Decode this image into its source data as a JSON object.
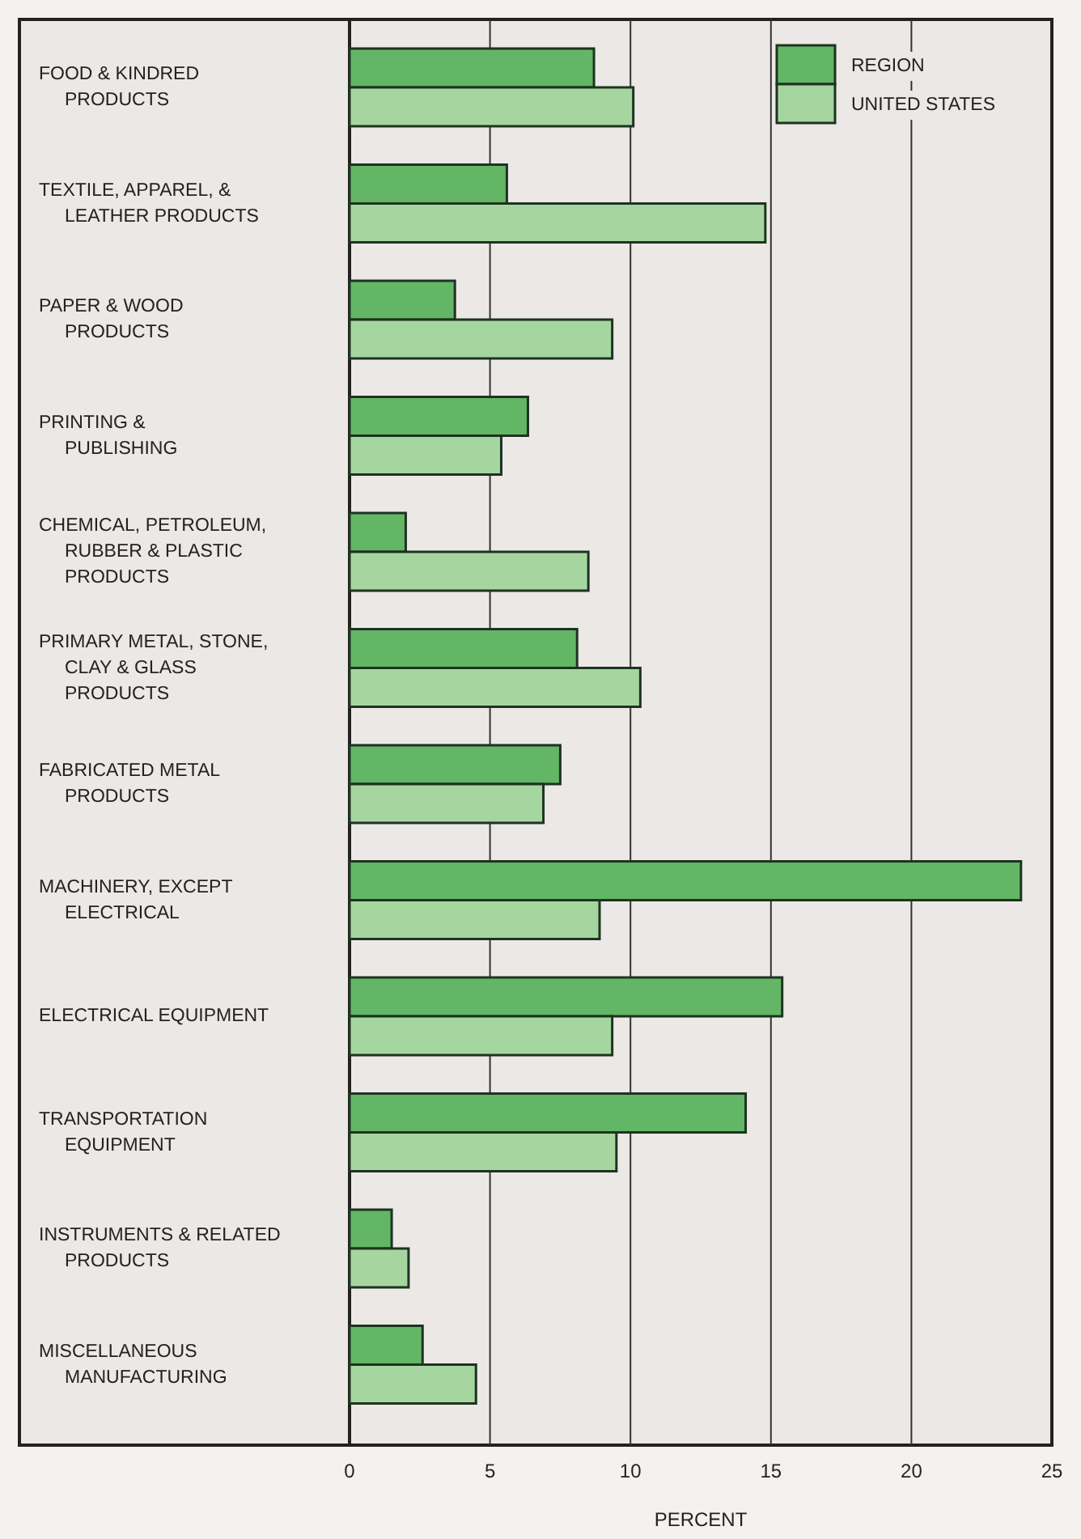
{
  "chart_data": {
    "type": "bar",
    "orientation": "horizontal",
    "xlabel": "PERCENT",
    "categories": [
      "FOOD & KINDRED\nPRODUCTS",
      "TEXTILE, APPAREL, &\nLEATHER PRODUCTS",
      "PAPER & WOOD\nPRODUCTS",
      "PRINTING &\nPUBLISHING",
      "CHEMICAL, PETROLEUM,\nRUBBER & PLASTIC\nPRODUCTS",
      "PRIMARY METAL, STONE,\nCLAY & GLASS\nPRODUCTS",
      "FABRICATED METAL\nPRODUCTS",
      "MACHINERY, EXCEPT\nELECTRICAL",
      "ELECTRICAL EQUIPMENT",
      "TRANSPORTATION\nEQUIPMENT",
      "INSTRUMENTS & RELATED\nPRODUCTS",
      "MISCELLANEOUS\nMANUFACTURING"
    ],
    "series": [
      {
        "name": "REGION",
        "color": "#62b666",
        "values": [
          8.7,
          5.6,
          3.75,
          6.35,
          2.0,
          8.1,
          7.5,
          23.9,
          15.4,
          14.1,
          1.5,
          2.6
        ]
      },
      {
        "name": "UNITED STATES",
        "color": "#a6d6a0",
        "values": [
          10.1,
          14.8,
          9.35,
          5.4,
          8.5,
          10.35,
          6.9,
          8.9,
          9.35,
          9.5,
          2.1,
          4.5
        ]
      }
    ],
    "xlim": [
      0,
      25
    ],
    "xticks": [
      0,
      5,
      10,
      15,
      20,
      25
    ],
    "grid": "x",
    "legend": "top right"
  }
}
